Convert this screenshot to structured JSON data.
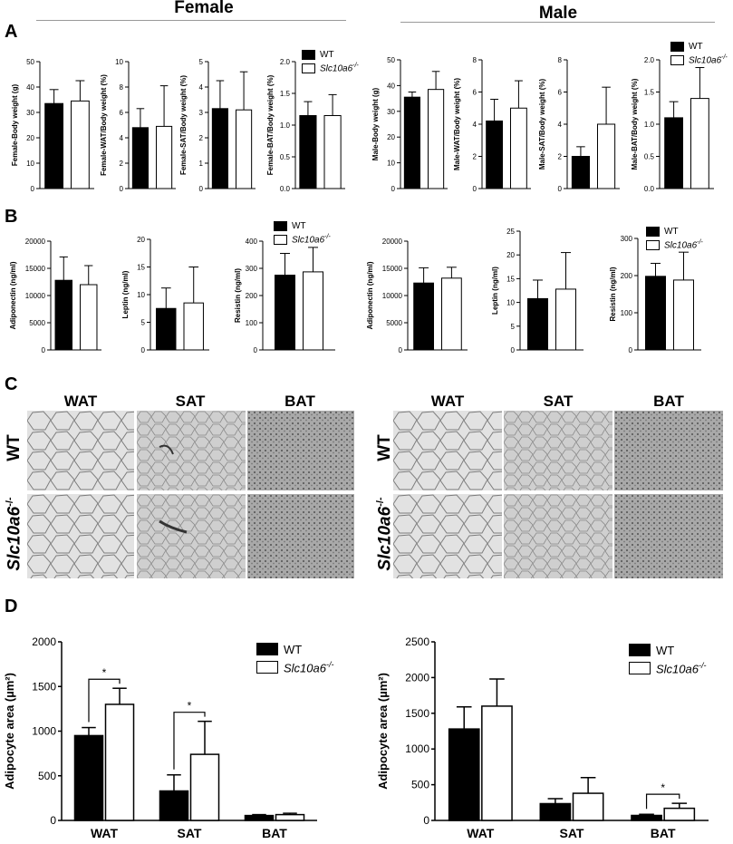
{
  "headers": {
    "female": "Female",
    "male": "Male"
  },
  "panels": {
    "A": "A",
    "B": "B",
    "C": "C",
    "D": "D"
  },
  "legend": {
    "wt": "WT",
    "ko_base": "Slc10a6",
    "ko_sup": "-/-"
  },
  "colors": {
    "wt": "#000000",
    "ko": "#ffffff"
  },
  "micrographs": {
    "columns": [
      "WAT",
      "SAT",
      "BAT"
    ],
    "rows": [
      "WT"
    ],
    "ko_row_base": "Slc10a6",
    "ko_row_sup": "-/-",
    "tissues": [
      "white adipose tissue micrograph",
      "subcutaneous adipose tissue micrograph",
      "brown adipose tissue micrograph"
    ]
  },
  "chart_data": [
    {
      "id": "A-f-body",
      "type": "bar",
      "ylabel": "Female-Body weight (g)",
      "ylim": [
        0,
        50
      ],
      "yticks": [
        0,
        10,
        20,
        30,
        40,
        50
      ],
      "tickfmt": "0",
      "series": [
        {
          "name": "WT",
          "values": [
            33.5
          ],
          "errors": [
            5.5
          ]
        },
        {
          "name": "Slc10a6-/-",
          "values": [
            34.5
          ],
          "errors": [
            8.0
          ]
        }
      ]
    },
    {
      "id": "A-f-wat",
      "type": "bar",
      "ylabel": "Female-WAT/Body weight (%)",
      "ylim": [
        0,
        10
      ],
      "yticks": [
        0,
        2,
        4,
        6,
        8,
        10
      ],
      "tickfmt": "0",
      "series": [
        {
          "name": "WT",
          "values": [
            4.8
          ],
          "errors": [
            1.5
          ]
        },
        {
          "name": "Slc10a6-/-",
          "values": [
            4.9
          ],
          "errors": [
            3.2
          ]
        }
      ]
    },
    {
      "id": "A-f-sat",
      "type": "bar",
      "ylabel": "Female-SAT/Body weight (%)",
      "ylim": [
        0,
        5
      ],
      "yticks": [
        0,
        1,
        2,
        3,
        4,
        5
      ],
      "tickfmt": "0",
      "series": [
        {
          "name": "WT",
          "values": [
            3.15
          ],
          "errors": [
            1.1
          ]
        },
        {
          "name": "Slc10a6-/-",
          "values": [
            3.1
          ],
          "errors": [
            1.5
          ]
        }
      ]
    },
    {
      "id": "A-f-bat",
      "type": "bar",
      "ylabel": "Female-BAT/Body weight (%)",
      "ylim": [
        0,
        2.0
      ],
      "yticks": [
        0,
        0.5,
        1.0,
        1.5,
        2.0
      ],
      "tickfmt": "0.0",
      "series": [
        {
          "name": "WT",
          "values": [
            1.15
          ],
          "errors": [
            0.22
          ]
        },
        {
          "name": "Slc10a6-/-",
          "values": [
            1.15
          ],
          "errors": [
            0.33
          ]
        }
      ]
    },
    {
      "id": "A-m-body",
      "type": "bar",
      "ylabel": "Male-Body weight (g)",
      "ylim": [
        0,
        50
      ],
      "yticks": [
        0,
        10,
        20,
        30,
        40,
        50
      ],
      "tickfmt": "0",
      "series": [
        {
          "name": "WT",
          "values": [
            35.5
          ],
          "errors": [
            2.0
          ]
        },
        {
          "name": "Slc10a6-/-",
          "values": [
            38.5
          ],
          "errors": [
            7.0
          ]
        }
      ]
    },
    {
      "id": "A-m-wat",
      "type": "bar",
      "ylabel": "Male-WAT/Body weight (%)",
      "ylim": [
        0,
        8
      ],
      "yticks": [
        0,
        2,
        4,
        6,
        8
      ],
      "tickfmt": "0",
      "series": [
        {
          "name": "WT",
          "values": [
            4.2
          ],
          "errors": [
            1.35
          ]
        },
        {
          "name": "Slc10a6-/-",
          "values": [
            5.0
          ],
          "errors": [
            1.7
          ]
        }
      ]
    },
    {
      "id": "A-m-sat",
      "type": "bar",
      "ylabel": "Male-SAT/Body weight (%)",
      "ylim": [
        0,
        8
      ],
      "yticks": [
        0,
        2,
        4,
        6,
        8
      ],
      "tickfmt": "0",
      "series": [
        {
          "name": "WT",
          "values": [
            2.0
          ],
          "errors": [
            0.6
          ]
        },
        {
          "name": "Slc10a6-/-",
          "values": [
            4.0
          ],
          "errors": [
            2.3
          ]
        }
      ]
    },
    {
      "id": "A-m-bat",
      "type": "bar",
      "ylabel": "Male-BAT/Body weight (%)",
      "ylim": [
        0,
        2.0
      ],
      "yticks": [
        0,
        0.5,
        1.0,
        1.5,
        2.0
      ],
      "tickfmt": "0.0",
      "series": [
        {
          "name": "WT",
          "values": [
            1.1
          ],
          "errors": [
            0.25
          ]
        },
        {
          "name": "Slc10a6-/-",
          "values": [
            1.4
          ],
          "errors": [
            0.48
          ]
        }
      ]
    },
    {
      "id": "B-f-adipo",
      "type": "bar",
      "ylabel": "Adiponectin (ng/ml)",
      "ylim": [
        0,
        20000
      ],
      "yticks": [
        0,
        5000,
        10000,
        15000,
        20000
      ],
      "tickfmt": "0",
      "series": [
        {
          "name": "WT",
          "values": [
            12800
          ],
          "errors": [
            4300
          ]
        },
        {
          "name": "Slc10a6-/-",
          "values": [
            12000
          ],
          "errors": [
            3500
          ]
        }
      ]
    },
    {
      "id": "B-f-leptin",
      "type": "bar",
      "ylabel": "Leptin (ng/ml)",
      "ylim": [
        0,
        20
      ],
      "yticks": [
        0,
        5,
        10,
        15,
        20
      ],
      "tickfmt": "0",
      "series": [
        {
          "name": "WT",
          "values": [
            7.5
          ],
          "errors": [
            3.7
          ]
        },
        {
          "name": "Slc10a6-/-",
          "values": [
            8.5
          ],
          "errors": [
            6.5
          ]
        }
      ]
    },
    {
      "id": "B-f-resistin",
      "type": "bar",
      "ylabel": "Resistin (ng/ml)",
      "ylim": [
        0,
        400
      ],
      "yticks": [
        0,
        100,
        200,
        300,
        400
      ],
      "tickfmt": "0",
      "series": [
        {
          "name": "WT",
          "values": [
            275
          ],
          "errors": [
            80
          ]
        },
        {
          "name": "Slc10a6-/-",
          "values": [
            287
          ],
          "errors": [
            90
          ]
        }
      ]
    },
    {
      "id": "B-m-adipo",
      "type": "bar",
      "ylabel": "Adiponectin (ng/ml)",
      "ylim": [
        0,
        20000
      ],
      "yticks": [
        0,
        5000,
        10000,
        15000,
        20000
      ],
      "tickfmt": "0",
      "series": [
        {
          "name": "WT",
          "values": [
            12300
          ],
          "errors": [
            2800
          ]
        },
        {
          "name": "Slc10a6-/-",
          "values": [
            13200
          ],
          "errors": [
            2000
          ]
        }
      ]
    },
    {
      "id": "B-m-leptin",
      "type": "bar",
      "ylabel": "Leptin (ng/ml)",
      "ylim": [
        0,
        25
      ],
      "yticks": [
        0,
        5,
        10,
        15,
        20,
        25
      ],
      "tickfmt": "0",
      "series": [
        {
          "name": "WT",
          "values": [
            10.8
          ],
          "errors": [
            3.9
          ]
        },
        {
          "name": "Slc10a6-/-",
          "values": [
            12.8
          ],
          "errors": [
            7.7
          ]
        }
      ]
    },
    {
      "id": "B-m-resistin",
      "type": "bar",
      "ylabel": "Resistin (ng/ml)",
      "ylim": [
        0,
        300
      ],
      "yticks": [
        0,
        100,
        200,
        300
      ],
      "tickfmt": "0",
      "series": [
        {
          "name": "WT",
          "values": [
            198
          ],
          "errors": [
            35
          ]
        },
        {
          "name": "Slc10a6-/-",
          "values": [
            188
          ],
          "errors": [
            75
          ]
        }
      ]
    },
    {
      "id": "D-f",
      "type": "bar",
      "ylabel": "Adipocyte area (µm²)",
      "ylim": [
        0,
        2000
      ],
      "yticks": [
        0,
        500,
        1000,
        1500,
        2000
      ],
      "tickfmt": "0",
      "categories": [
        "WAT",
        "SAT",
        "BAT"
      ],
      "series": [
        {
          "name": "WT",
          "values": [
            950,
            330,
            55
          ],
          "errors": [
            90,
            180,
            10
          ]
        },
        {
          "name": "Slc10a6-/-",
          "values": [
            1300,
            740,
            65
          ],
          "errors": [
            180,
            370,
            15
          ]
        }
      ],
      "significance": [
        {
          "category": "WAT",
          "label": "*"
        },
        {
          "category": "SAT",
          "label": "*"
        }
      ]
    },
    {
      "id": "D-m",
      "type": "bar",
      "ylabel": "Adipocyte area (µm²)",
      "ylim": [
        0,
        2500
      ],
      "yticks": [
        0,
        500,
        1000,
        1500,
        2000,
        2500
      ],
      "tickfmt": "0",
      "categories": [
        "WAT",
        "SAT",
        "BAT"
      ],
      "series": [
        {
          "name": "WT",
          "values": [
            1280,
            235,
            70
          ],
          "errors": [
            310,
            70,
            15
          ]
        },
        {
          "name": "Slc10a6-/-",
          "values": [
            1600,
            380,
            170
          ],
          "errors": [
            380,
            220,
            70
          ]
        }
      ],
      "significance": [
        {
          "category": "BAT",
          "label": "*"
        }
      ]
    }
  ]
}
